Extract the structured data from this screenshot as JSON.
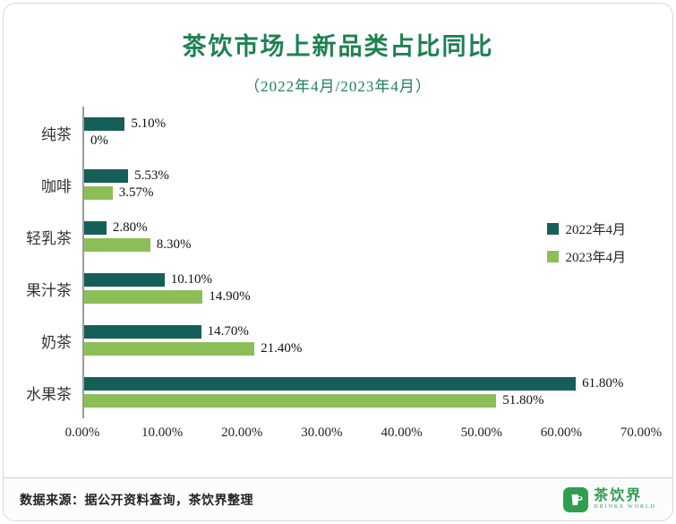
{
  "title": "茶饮市场上新品类占比同比",
  "subtitle": "（2022年4月/2023年4月）",
  "legend": [
    {
      "label": "2022年4月",
      "color": "#165f58"
    },
    {
      "label": "2023年4月",
      "color": "#8cbe58"
    }
  ],
  "chart_data": {
    "type": "bar",
    "orientation": "horizontal",
    "title": "茶饮市场上新品类占比同比",
    "subtitle": "（2022年4月/2023年4月）",
    "categories": [
      "纯茶",
      "咖啡",
      "轻乳茶",
      "果汁茶",
      "奶茶",
      "水果茶"
    ],
    "series": [
      {
        "name": "2022年4月",
        "color": "#165f58",
        "values": [
          5.1,
          5.53,
          2.8,
          10.1,
          14.7,
          61.8
        ],
        "labels": [
          "5.10%",
          "5.53%",
          "2.80%",
          "10.10%",
          "14.70%",
          "61.80%"
        ]
      },
      {
        "name": "2023年4月",
        "color": "#8cbe58",
        "values": [
          0,
          3.57,
          8.3,
          14.9,
          21.4,
          51.8
        ],
        "labels": [
          "0%",
          "3.57%",
          "8.30%",
          "14.90%",
          "21.40%",
          "51.80%"
        ]
      }
    ],
    "x_ticks": [
      "0.00%",
      "10.00%",
      "20.00%",
      "30.00%",
      "40.00%",
      "50.00%",
      "60.00%",
      "70.00%"
    ],
    "x_tick_values": [
      0,
      10,
      20,
      30,
      40,
      50,
      60,
      70
    ],
    "xlim": [
      0,
      70
    ],
    "grid": false,
    "legend_position": "right"
  },
  "footer": {
    "source": "数据来源：据公开资料查询，茶饮界整理",
    "logo_text": "茶饮界",
    "logo_subtext": "DRINKS WORLD"
  },
  "colors": {
    "title_green": "#1e8152",
    "axis_line": "#9a9a9a"
  }
}
